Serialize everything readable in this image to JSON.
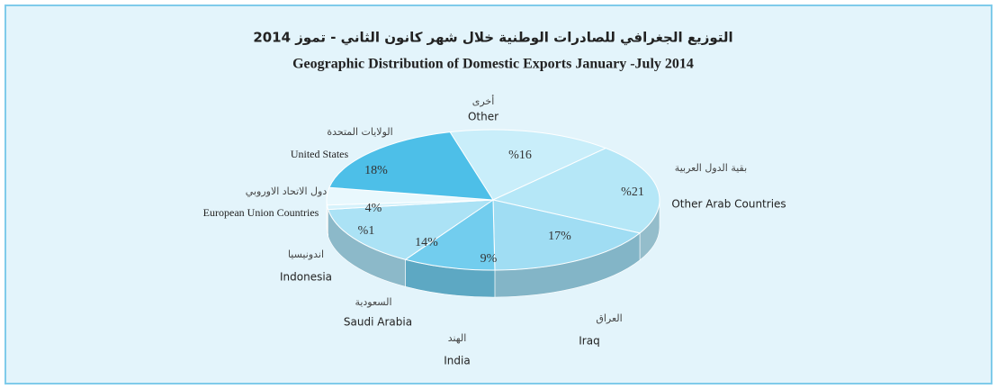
{
  "chart_data": {
    "type": "pie3d",
    "title_arabic": "التوزيع الجغرافي للصادرات الوطنية  خلال شهر كانون الثاني - تموز 2014",
    "title": "Geographic Distribution of Domestic Exports January -July 2014",
    "categories": [
      "Other",
      "Other Arab Countries",
      "Iraq",
      "India",
      "Saudi Arabia",
      "Indonesia",
      "European Union Countries",
      "United States"
    ],
    "categories_arabic": [
      "أخرى",
      "بقية الدول العربية",
      "العراق",
      "الهند",
      "السعودية",
      "اندونيسيا",
      "دول الاتحاد الاوروبي",
      "الولايات المتحدة"
    ],
    "values": [
      16,
      21,
      17,
      9,
      14,
      1,
      4,
      18
    ],
    "value_labels": [
      "%16",
      "%21",
      "17%",
      "9%",
      "14%",
      "%1",
      "4%",
      "18%"
    ],
    "colors": [
      "#c9eefa",
      "#b5e7f7",
      "#a0ddf3",
      "#72cdee",
      "#abe2f5",
      "#d6f2fb",
      "#e9f8fd",
      "#4dbfe8"
    ]
  }
}
